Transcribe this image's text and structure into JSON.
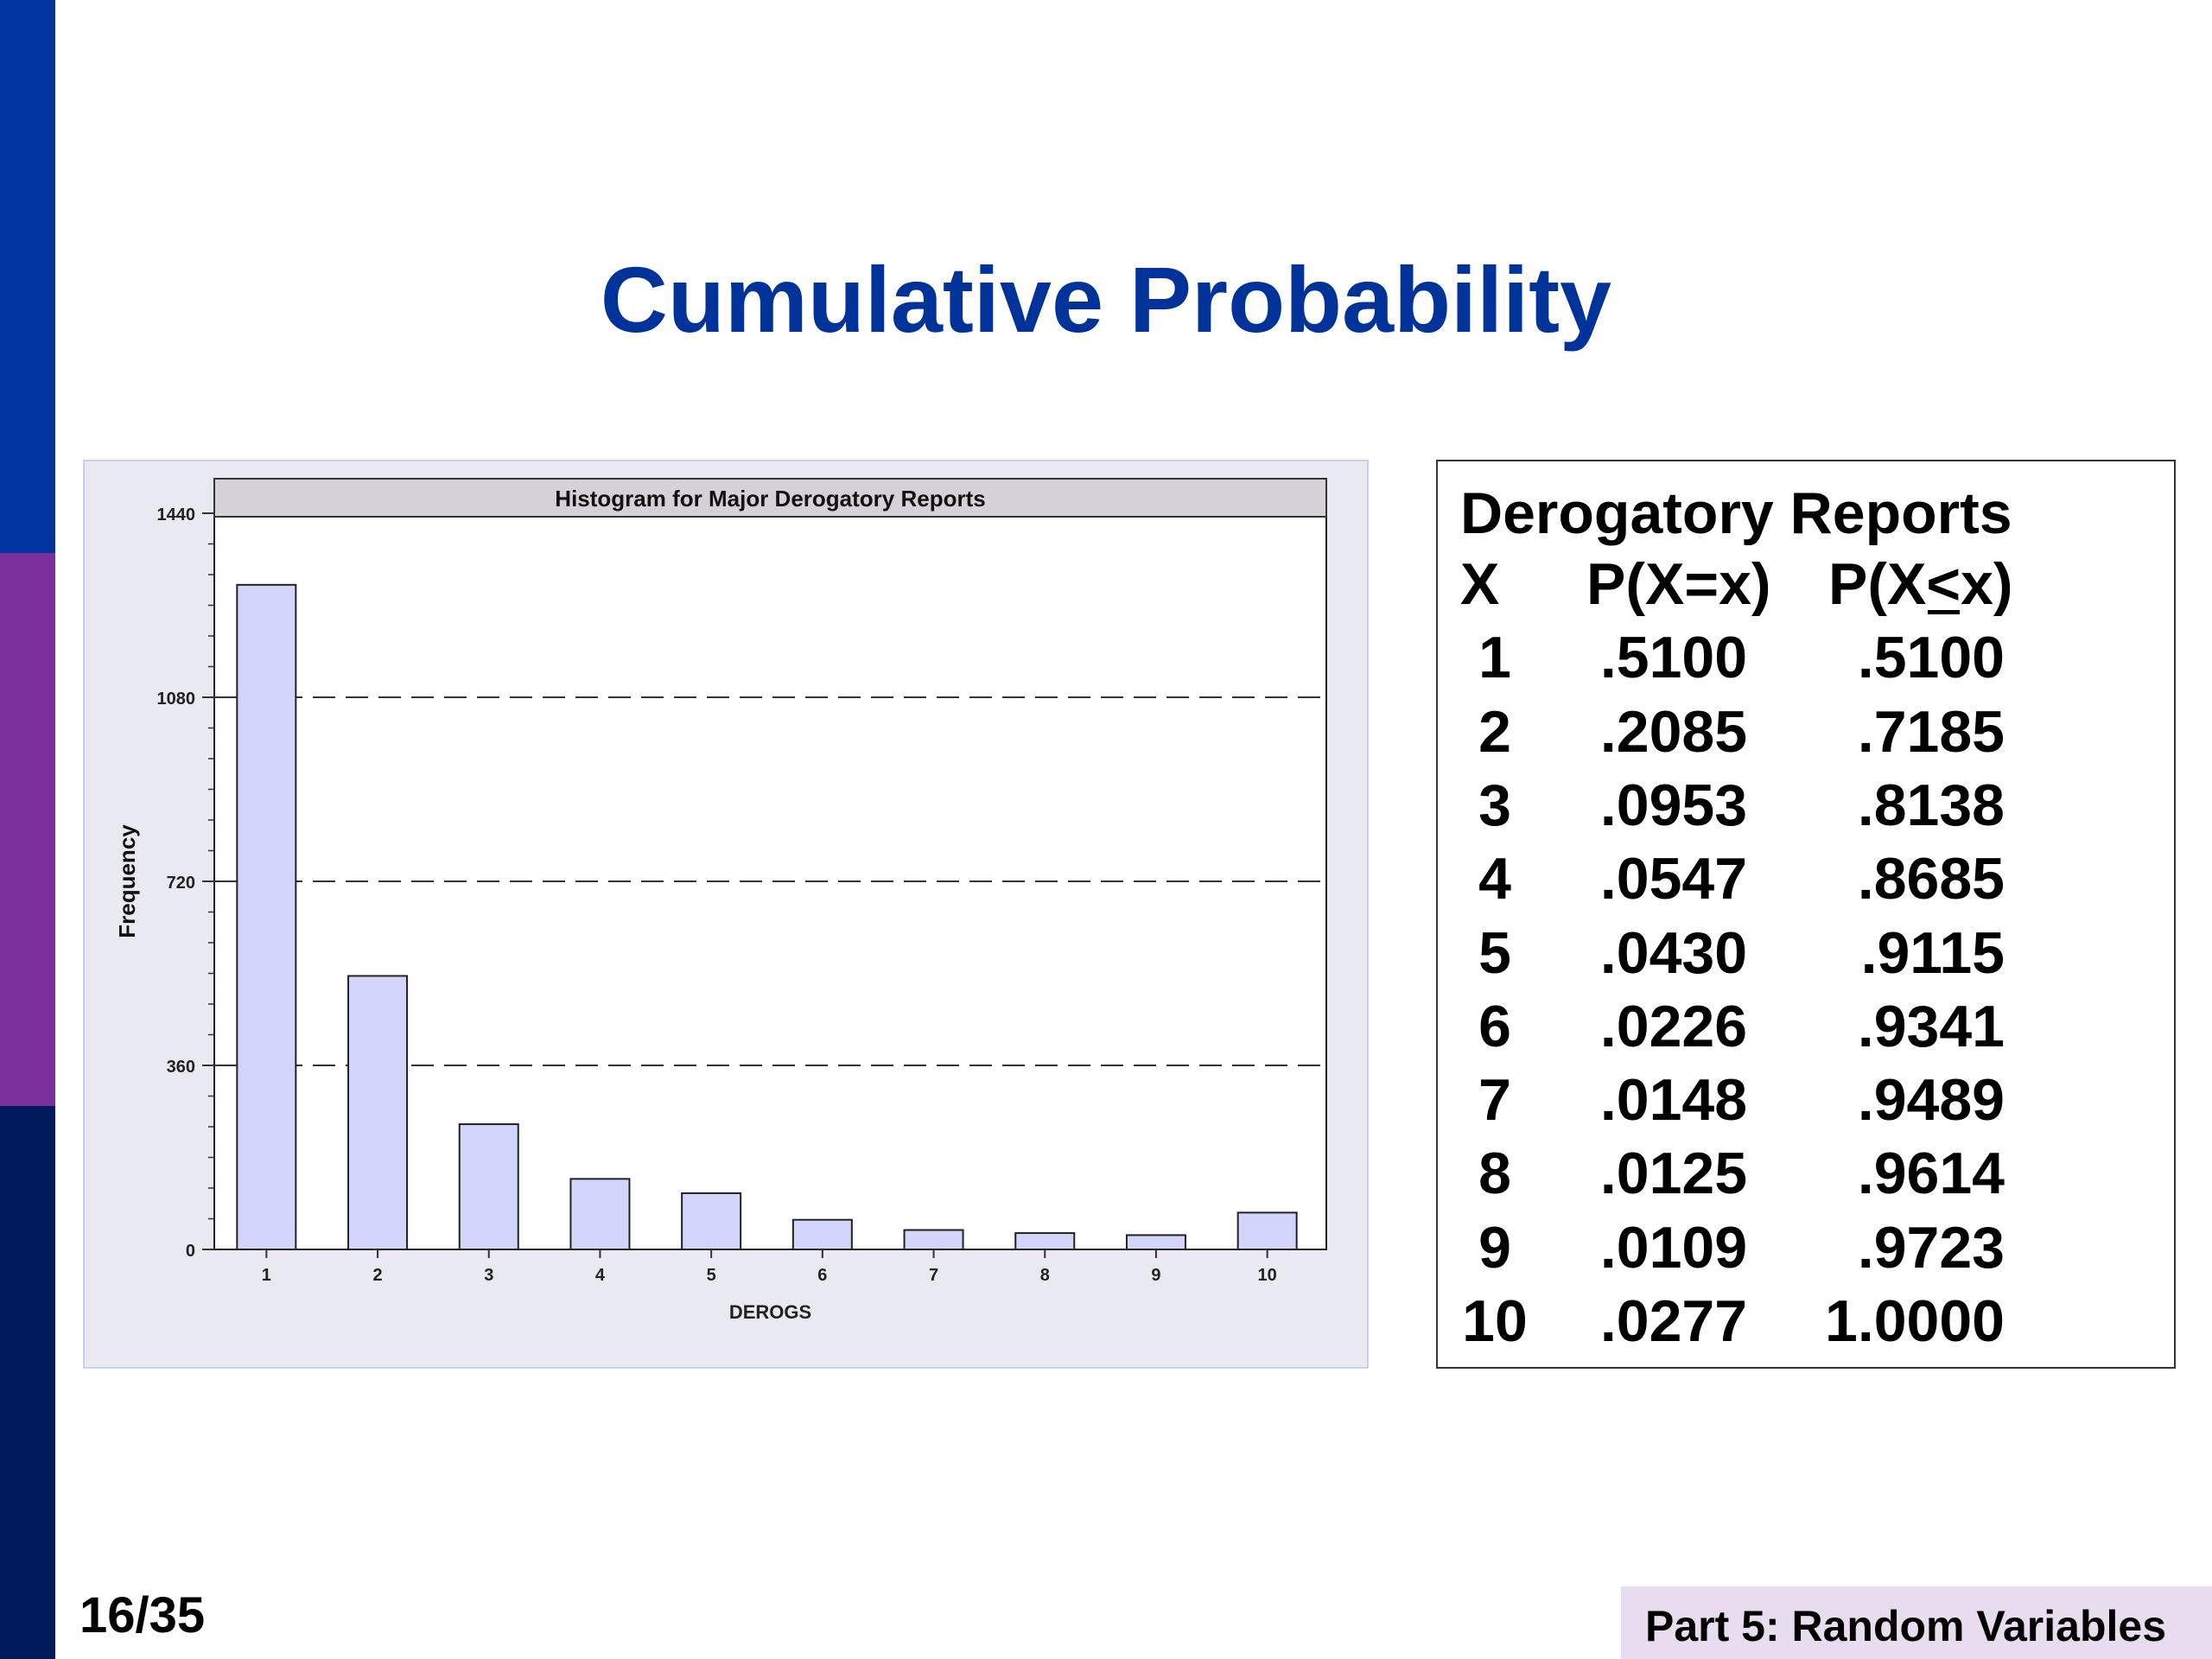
{
  "colors": {
    "title": "#003399",
    "band_top": "#0033a0",
    "band_mid": "#7a2e9c",
    "band_bottom": "#001a5c",
    "bar_fill": "#d3d6fa",
    "footer_bg": "#e8dcef"
  },
  "slide": {
    "title": "Cumulative Probability",
    "page_number": "16/35",
    "footer": "Part 5: Random Variables"
  },
  "chart_data": {
    "type": "bar",
    "title": "Histogram for Major Derogatory Reports",
    "xlabel": "DEROGS",
    "ylabel": "Frequency",
    "categories": [
      "1",
      "2",
      "3",
      "4",
      "5",
      "6",
      "7",
      "8",
      "9",
      "10"
    ],
    "values": [
      1300,
      535,
      245,
      138,
      110,
      58,
      38,
      32,
      28,
      72
    ],
    "ylim": [
      0,
      1440
    ],
    "yticks": [
      "0",
      "360",
      "720",
      "1080",
      "1440"
    ],
    "grid": "dashed horizontal at 360, 720, 1080"
  },
  "table": {
    "title": "Derogatory Reports",
    "headers": [
      "X",
      "P(X=x)",
      "P(X<x)"
    ],
    "rows": [
      [
        "1",
        ".5100",
        ".5100"
      ],
      [
        "2",
        ".2085",
        ".7185"
      ],
      [
        "3",
        ".0953",
        ".8138"
      ],
      [
        "4",
        ".0547",
        ".8685"
      ],
      [
        "5",
        ".0430",
        ".9115"
      ],
      [
        "6",
        ".0226",
        ".9341"
      ],
      [
        "7",
        ".0148",
        ".9489"
      ],
      [
        "8",
        ".0125",
        ".9614"
      ],
      [
        "9",
        ".0109",
        ".9723"
      ],
      [
        "10",
        ".0277",
        "1.0000"
      ]
    ]
  }
}
